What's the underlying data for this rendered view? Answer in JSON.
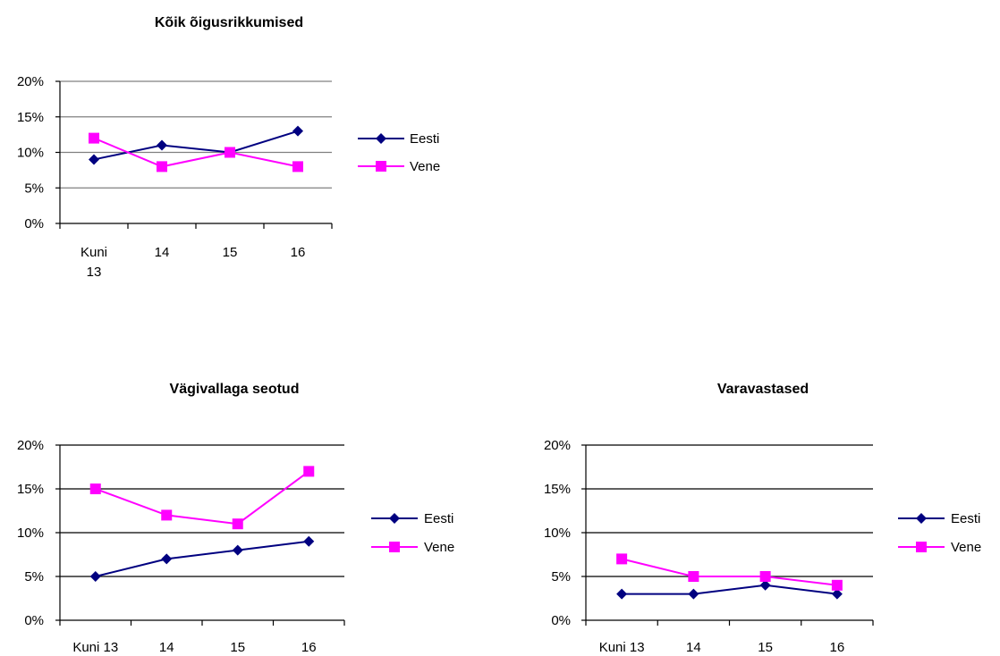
{
  "chart_data": [
    {
      "type": "line",
      "title": "Kõik õigusrikkumised",
      "categories": [
        [
          "Kuni",
          "13"
        ],
        [
          "14"
        ],
        [
          "15"
        ],
        [
          "16"
        ]
      ],
      "ylim": [
        0,
        20
      ],
      "yticks": [
        "0%",
        "5%",
        "10%",
        "15%",
        "20%"
      ],
      "grid": true,
      "legend_position": "right",
      "series": [
        {
          "name": "Eesti",
          "values": [
            9,
            11,
            10,
            13
          ],
          "color": "#000080",
          "marker": "diamond"
        },
        {
          "name": "Vene",
          "values": [
            12,
            8,
            10,
            8
          ],
          "color": "#ff00ff",
          "marker": "square"
        }
      ]
    },
    {
      "type": "line",
      "title": "Vägivallaga seotud",
      "categories": [
        [
          "Kuni 13"
        ],
        [
          "14"
        ],
        [
          "15"
        ],
        [
          "16"
        ]
      ],
      "ylim": [
        0,
        20
      ],
      "yticks": [
        "0%",
        "5%",
        "10%",
        "15%",
        "20%"
      ],
      "grid": true,
      "legend_position": "right",
      "series": [
        {
          "name": "Eesti",
          "values": [
            5,
            7,
            8,
            9
          ],
          "color": "#000080",
          "marker": "diamond"
        },
        {
          "name": "Vene",
          "values": [
            15,
            12,
            11,
            17
          ],
          "color": "#ff00ff",
          "marker": "square"
        }
      ]
    },
    {
      "type": "line",
      "title": "Varavastased",
      "categories": [
        [
          "Kuni 13"
        ],
        [
          "14"
        ],
        [
          "15"
        ],
        [
          "16"
        ]
      ],
      "ylim": [
        0,
        20
      ],
      "yticks": [
        "0%",
        "5%",
        "10%",
        "15%",
        "20%"
      ],
      "grid": true,
      "legend_position": "right",
      "series": [
        {
          "name": "Eesti",
          "values": [
            3,
            3,
            4,
            3
          ],
          "color": "#000080",
          "marker": "diamond"
        },
        {
          "name": "Vene",
          "values": [
            7,
            5,
            5,
            4
          ],
          "color": "#ff00ff",
          "marker": "square"
        }
      ]
    }
  ]
}
